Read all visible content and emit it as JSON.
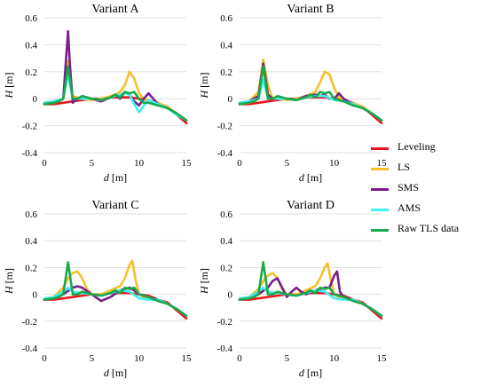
{
  "colors": {
    "Leveling": "#e8141c",
    "LS": "#f5c02a",
    "SMS": "#7a1f8a",
    "AMS": "#3ef1f2",
    "Raw TLS data": "#19a84b"
  },
  "legend": [
    "Leveling",
    "LS",
    "SMS",
    "AMS",
    "Raw TLS data"
  ],
  "chart_data": [
    {
      "type": "line",
      "title": "Variant A",
      "xlabel_italic": "d",
      "xlabel_unit": " [m]",
      "ylabel_italic": "H",
      "ylabel_unit": " [m]",
      "xlim": [
        0,
        15
      ],
      "ylim": [
        -0.4,
        0.6
      ],
      "xticks": [
        0,
        5,
        10,
        15
      ],
      "yticks": [
        "-0.4",
        "-0.2",
        "0",
        "0.2",
        "0.4",
        "0.6"
      ],
      "series": [
        {
          "name": "Leveling",
          "x": [
            0,
            1,
            2,
            3,
            4,
            5,
            6,
            7,
            8,
            9,
            10,
            11,
            12,
            13,
            14,
            15
          ],
          "y": [
            -0.04,
            -0.04,
            -0.03,
            -0.02,
            -0.01,
            0,
            0,
            0.01,
            0.01,
            0.01,
            0,
            -0.01,
            -0.04,
            -0.06,
            -0.12,
            -0.18
          ]
        },
        {
          "name": "LS",
          "x": [
            0,
            1,
            2,
            2.5,
            3,
            4,
            5,
            6,
            7,
            7.5,
            8,
            8.5,
            9,
            9.5,
            10,
            10.5,
            11,
            12,
            13,
            14,
            15
          ],
          "y": [
            -0.03,
            -0.02,
            0.0,
            0.28,
            0.02,
            0.0,
            -0.01,
            0.0,
            0.02,
            0.03,
            0.05,
            0.1,
            0.2,
            0.15,
            0.04,
            0.0,
            -0.01,
            -0.03,
            -0.06,
            -0.11,
            -0.16
          ]
        },
        {
          "name": "SMS",
          "x": [
            0,
            1,
            1.5,
            2,
            2.3,
            2.5,
            2.7,
            3,
            3.5,
            4,
            5,
            6,
            7,
            7.5,
            8,
            8.5,
            9,
            9.5,
            10,
            10.5,
            11,
            11.5,
            12,
            13,
            14,
            15
          ],
          "y": [
            -0.03,
            -0.02,
            -0.02,
            0.0,
            0.3,
            0.5,
            0.25,
            -0.03,
            0.0,
            0.02,
            0.0,
            -0.02,
            0.01,
            0.03,
            0.0,
            0.05,
            0.03,
            -0.02,
            -0.05,
            0.0,
            0.04,
            0.0,
            -0.04,
            -0.07,
            -0.11,
            -0.16
          ]
        },
        {
          "name": "AMS",
          "x": [
            0,
            1,
            2,
            2.5,
            3,
            4,
            5,
            6,
            7,
            8,
            8.5,
            9,
            9.5,
            10,
            10.5,
            11,
            12,
            13,
            14,
            15
          ],
          "y": [
            -0.03,
            -0.02,
            0.0,
            0.18,
            0.0,
            0.0,
            0.0,
            -0.01,
            0.01,
            0.03,
            0.04,
            0.03,
            -0.04,
            -0.1,
            -0.05,
            -0.01,
            -0.04,
            -0.07,
            -0.12,
            -0.16
          ]
        },
        {
          "name": "Raw TLS data",
          "x": [
            0,
            1,
            1.5,
            2,
            2.5,
            3,
            3.5,
            4,
            5,
            6,
            7,
            7.5,
            8,
            8.5,
            9,
            9.5,
            10,
            10.5,
            11,
            12,
            13,
            14,
            15
          ],
          "y": [
            -0.04,
            -0.03,
            -0.02,
            0.0,
            0.24,
            0.0,
            0.0,
            0.02,
            0.0,
            -0.01,
            0.01,
            0.03,
            0.01,
            0.05,
            0.04,
            0.05,
            0.0,
            -0.03,
            -0.03,
            -0.05,
            -0.07,
            -0.11,
            -0.16
          ]
        }
      ]
    },
    {
      "type": "line",
      "title": "Variant B",
      "xlabel_italic": "d",
      "xlabel_unit": " [m]",
      "ylabel_italic": "H",
      "ylabel_unit": " [m]",
      "xlim": [
        0,
        15
      ],
      "ylim": [
        -0.4,
        0.6
      ],
      "xticks": [
        0,
        5,
        10,
        15
      ],
      "yticks": [
        "-0.4",
        "-0.2",
        "0",
        "0.2",
        "0.4",
        "0.6"
      ],
      "series": [
        {
          "name": "Leveling",
          "x": [
            0,
            1,
            2,
            3,
            4,
            5,
            6,
            7,
            8,
            9,
            10,
            11,
            12,
            13,
            14,
            15
          ],
          "y": [
            -0.04,
            -0.04,
            -0.03,
            -0.02,
            -0.01,
            0,
            0,
            0.01,
            0.01,
            0.01,
            0,
            -0.01,
            -0.04,
            -0.06,
            -0.12,
            -0.18
          ]
        },
        {
          "name": "LS",
          "x": [
            0,
            1,
            2,
            2.5,
            3,
            3.5,
            4,
            5,
            6,
            7,
            8,
            8.5,
            9,
            9.5,
            10,
            10.5,
            11,
            12,
            13,
            14,
            15
          ],
          "y": [
            -0.03,
            -0.02,
            0.05,
            0.29,
            0.1,
            0.0,
            0.0,
            -0.01,
            0.0,
            0.02,
            0.05,
            0.12,
            0.2,
            0.18,
            0.08,
            0.01,
            -0.01,
            -0.03,
            -0.06,
            -0.11,
            -0.16
          ]
        },
        {
          "name": "SMS",
          "x": [
            0,
            1,
            2,
            2.5,
            3,
            3.5,
            4,
            5,
            6,
            7,
            8,
            8.5,
            9,
            9.5,
            10,
            10.5,
            11,
            12,
            13,
            14,
            15
          ],
          "y": [
            -0.03,
            -0.02,
            0.02,
            0.26,
            0.03,
            0.0,
            0.0,
            0.0,
            -0.01,
            0.02,
            0.03,
            0.02,
            0.03,
            0.0,
            0.0,
            0.04,
            0.0,
            -0.04,
            -0.07,
            -0.11,
            -0.16
          ]
        },
        {
          "name": "AMS",
          "x": [
            0,
            1,
            2,
            2.5,
            3,
            4,
            5,
            6,
            7,
            8,
            9,
            10,
            11,
            12,
            13,
            14,
            15
          ],
          "y": [
            -0.03,
            -0.02,
            0.0,
            0.14,
            0.0,
            0.0,
            0.0,
            -0.01,
            0.01,
            0.02,
            0.02,
            -0.01,
            -0.02,
            -0.04,
            -0.07,
            -0.11,
            -0.16
          ]
        },
        {
          "name": "Raw TLS data",
          "x": [
            0,
            1,
            1.5,
            2,
            2.5,
            3,
            3.5,
            4,
            5,
            6,
            7,
            7.5,
            8,
            8.5,
            9,
            9.5,
            10,
            11,
            12,
            13,
            14,
            15
          ],
          "y": [
            -0.04,
            -0.03,
            -0.02,
            0.0,
            0.24,
            0.0,
            0.0,
            0.02,
            0.0,
            -0.01,
            0.01,
            0.03,
            0.01,
            0.05,
            0.04,
            0.05,
            0.0,
            -0.02,
            -0.05,
            -0.07,
            -0.11,
            -0.16
          ]
        }
      ]
    },
    {
      "type": "line",
      "title": "Variant C",
      "xlabel_italic": "d",
      "xlabel_unit": " [m]",
      "ylabel_italic": "H",
      "ylabel_unit": " [m]",
      "xlim": [
        0,
        15
      ],
      "ylim": [
        -0.4,
        0.6
      ],
      "xticks": [
        0,
        5,
        10,
        15
      ],
      "yticks": [
        "-0.4",
        "-0.2",
        "0",
        "0.2",
        "0.4",
        "0.6"
      ],
      "series": [
        {
          "name": "Leveling",
          "x": [
            0,
            1,
            2,
            3,
            4,
            5,
            6,
            7,
            8,
            9,
            10,
            11,
            12,
            13,
            14,
            15
          ],
          "y": [
            -0.04,
            -0.04,
            -0.03,
            -0.02,
            -0.01,
            0,
            0,
            0.01,
            0.01,
            0.01,
            0,
            -0.01,
            -0.04,
            -0.06,
            -0.12,
            -0.18
          ]
        },
        {
          "name": "LS",
          "x": [
            0,
            1,
            2,
            2.5,
            3,
            3.5,
            4,
            4.5,
            5,
            6,
            7,
            8,
            8.5,
            9,
            9.3,
            9.6,
            10,
            10.5,
            11,
            12,
            13,
            14,
            15
          ],
          "y": [
            -0.03,
            -0.02,
            0.05,
            0.12,
            0.16,
            0.17,
            0.12,
            0.04,
            0.0,
            0.0,
            0.03,
            0.06,
            0.12,
            0.22,
            0.25,
            0.12,
            0.0,
            -0.02,
            -0.03,
            -0.04,
            -0.07,
            -0.11,
            -0.16
          ]
        },
        {
          "name": "SMS",
          "x": [
            0,
            1,
            2,
            3,
            3.5,
            4,
            5,
            6,
            7,
            8,
            9,
            9.5,
            10,
            11,
            12,
            13,
            14,
            15
          ],
          "y": [
            -0.04,
            -0.03,
            0.0,
            0.05,
            0.06,
            0.05,
            0.0,
            -0.05,
            -0.02,
            0.03,
            0.05,
            0.03,
            0.0,
            -0.02,
            -0.04,
            -0.07,
            -0.11,
            -0.16
          ]
        },
        {
          "name": "AMS",
          "x": [
            0,
            1,
            2,
            2.5,
            3,
            4,
            5,
            6,
            7,
            8,
            9,
            10,
            11,
            12,
            13,
            14,
            15
          ],
          "y": [
            -0.03,
            -0.02,
            0.02,
            0.05,
            0.02,
            0.01,
            0.0,
            -0.01,
            0.01,
            0.03,
            0.02,
            -0.03,
            -0.04,
            -0.04,
            -0.07,
            -0.11,
            -0.16
          ]
        },
        {
          "name": "Raw TLS data",
          "x": [
            0,
            1,
            1.5,
            2,
            2.5,
            3,
            3.5,
            4,
            5,
            6,
            7,
            7.5,
            8,
            8.5,
            9,
            9.5,
            10,
            11,
            12,
            13,
            14,
            15
          ],
          "y": [
            -0.04,
            -0.03,
            -0.02,
            0.0,
            0.24,
            0.0,
            0.0,
            0.02,
            0.0,
            -0.01,
            0.01,
            0.03,
            0.01,
            0.05,
            0.04,
            0.05,
            0.0,
            -0.02,
            -0.05,
            -0.07,
            -0.11,
            -0.16
          ]
        }
      ]
    },
    {
      "type": "line",
      "title": "Variant D",
      "xlabel_italic": "d",
      "xlabel_unit": " [m]",
      "ylabel_italic": "H",
      "ylabel_unit": " [m]",
      "xlim": [
        0,
        15
      ],
      "ylim": [
        -0.4,
        0.6
      ],
      "xticks": [
        0,
        5,
        10,
        15
      ],
      "yticks": [
        "-0.4",
        "-0.2",
        "0",
        "0.2",
        "0.4",
        "0.6"
      ],
      "series": [
        {
          "name": "Leveling",
          "x": [
            0,
            1,
            2,
            3,
            4,
            5,
            6,
            7,
            8,
            9,
            10,
            11,
            12,
            13,
            14,
            15
          ],
          "y": [
            -0.04,
            -0.04,
            -0.03,
            -0.02,
            -0.01,
            0,
            0,
            0.01,
            0.01,
            0.01,
            0,
            -0.01,
            -0.04,
            -0.06,
            -0.12,
            -0.18
          ]
        },
        {
          "name": "LS",
          "x": [
            0,
            1,
            2,
            2.5,
            3,
            3.5,
            4,
            4.5,
            5,
            6,
            7,
            8,
            8.5,
            9,
            9.3,
            9.6,
            10,
            10.5,
            11,
            12,
            13,
            14,
            15
          ],
          "y": [
            -0.03,
            -0.02,
            0.04,
            0.1,
            0.14,
            0.16,
            0.12,
            0.04,
            0.0,
            0.0,
            0.03,
            0.06,
            0.12,
            0.2,
            0.23,
            0.12,
            0.0,
            -0.02,
            -0.03,
            -0.04,
            -0.07,
            -0.11,
            -0.16
          ]
        },
        {
          "name": "SMS",
          "x": [
            0,
            1,
            2,
            3,
            3.5,
            4,
            4.5,
            5,
            5.5,
            6,
            6.5,
            7,
            8,
            9,
            9.5,
            10,
            10.3,
            10.6,
            11,
            12,
            13,
            14,
            15
          ],
          "y": [
            -0.04,
            -0.03,
            0.0,
            0.05,
            0.1,
            0.12,
            0.05,
            -0.02,
            0.02,
            0.05,
            0.02,
            0.0,
            0.03,
            0.05,
            0.05,
            0.14,
            0.17,
            0.02,
            -0.02,
            -0.04,
            -0.07,
            -0.11,
            -0.16
          ]
        },
        {
          "name": "AMS",
          "x": [
            0,
            1,
            2,
            2.5,
            3,
            4,
            5,
            6,
            7,
            8,
            9,
            10,
            11,
            12,
            13,
            14,
            15
          ],
          "y": [
            -0.03,
            -0.02,
            0.02,
            0.05,
            0.02,
            0.01,
            0.0,
            -0.01,
            0.01,
            0.03,
            0.02,
            -0.03,
            -0.04,
            -0.04,
            -0.07,
            -0.11,
            -0.16
          ]
        },
        {
          "name": "Raw TLS data",
          "x": [
            0,
            1,
            1.5,
            2,
            2.5,
            3,
            3.5,
            4,
            5,
            6,
            7,
            7.5,
            8,
            8.5,
            9,
            9.5,
            10,
            11,
            12,
            13,
            14,
            15
          ],
          "y": [
            -0.04,
            -0.03,
            -0.02,
            0.0,
            0.24,
            0.0,
            0.0,
            0.02,
            0.0,
            -0.01,
            0.01,
            0.03,
            0.01,
            0.05,
            0.04,
            0.05,
            0.0,
            -0.02,
            -0.05,
            -0.07,
            -0.11,
            -0.16
          ]
        }
      ]
    }
  ]
}
